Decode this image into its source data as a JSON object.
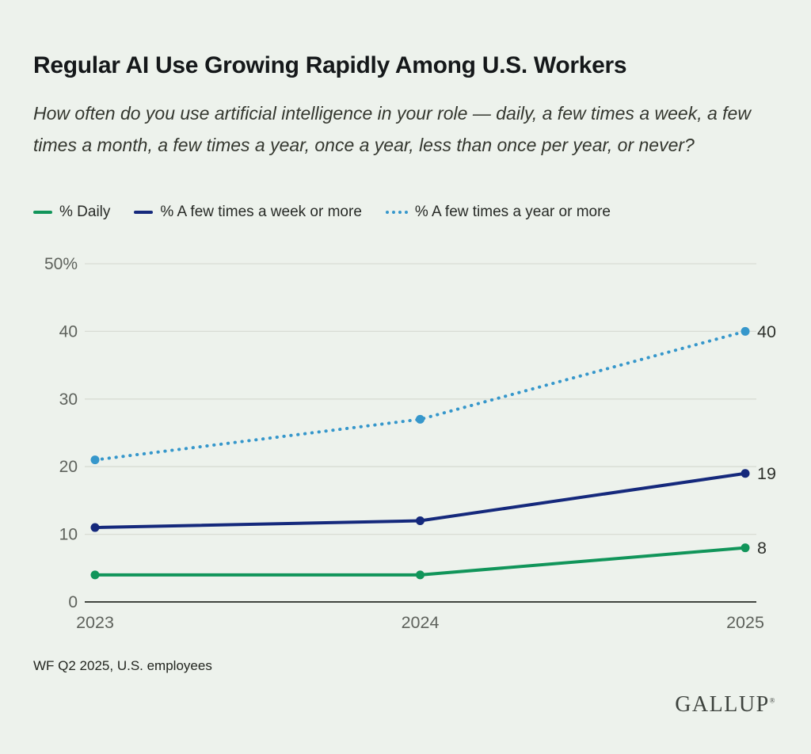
{
  "header": {
    "title": "Regular AI Use Growing Rapidly Among U.S. Workers",
    "subtitle": "How often do you use artificial intelligence in your role — daily, a few times a week, a few times a month, a few times a year, once a year, less than once per year, or never?"
  },
  "chart_data": {
    "type": "line",
    "x": [
      "2023",
      "2024",
      "2025"
    ],
    "series": [
      {
        "name": "% Daily",
        "values": [
          4,
          4,
          8
        ],
        "color": "#11955a",
        "style": "solid",
        "end_label": "8"
      },
      {
        "name": "% A few times a week or more",
        "values": [
          11,
          12,
          19
        ],
        "color": "#15297c",
        "style": "solid",
        "end_label": "19"
      },
      {
        "name": "% A few times a year or more",
        "values": [
          21,
          27,
          40
        ],
        "color": "#3697cb",
        "style": "dotted",
        "end_label": "40"
      }
    ],
    "ylim": [
      0,
      50
    ],
    "yticks": [
      0,
      10,
      20,
      30,
      40,
      50
    ],
    "ytick_labels": [
      "0",
      "10",
      "20",
      "30",
      "40",
      "50%"
    ],
    "grid": true,
    "legend_position": "top"
  },
  "footer": {
    "source": "WF Q2 2025, U.S. employees",
    "brand": "GALLUP",
    "brand_mark": "®"
  },
  "colors": {
    "background": "#edf2ec",
    "grid_line": "#d8dcd4",
    "axis_line": "#41453f",
    "tick_label": "#5e625c",
    "end_label": "#2e312c"
  }
}
